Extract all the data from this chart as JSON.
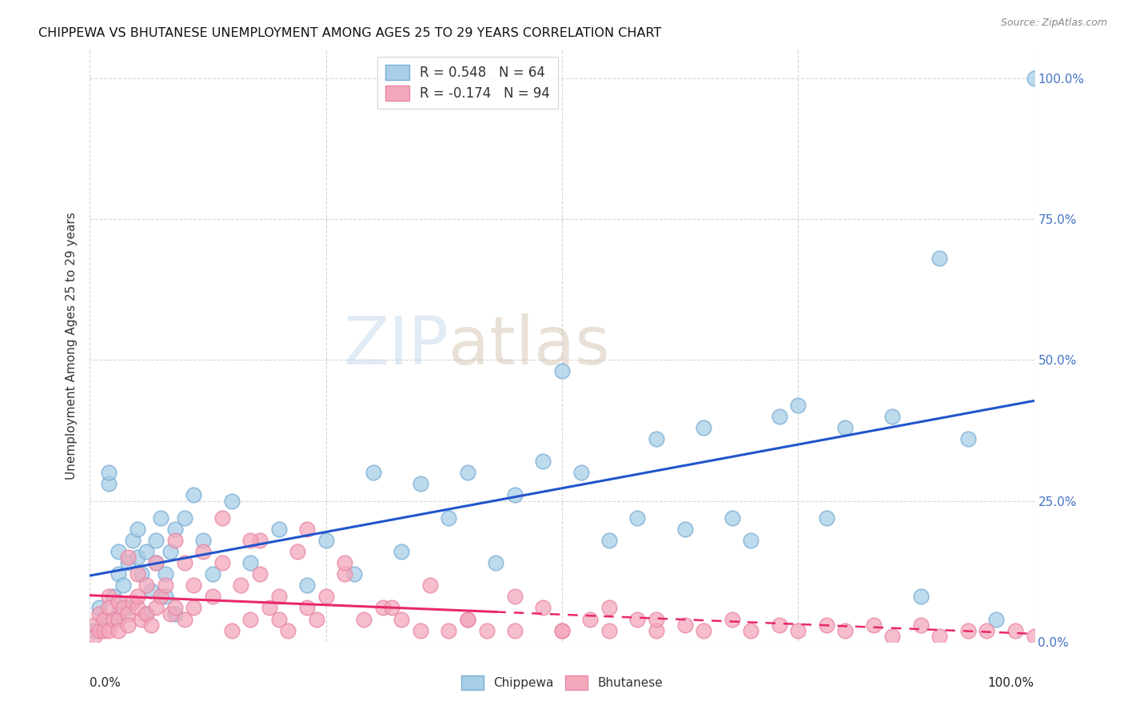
{
  "title": "CHIPPEWA VS BHUTANESE UNEMPLOYMENT AMONG AGES 25 TO 29 YEARS CORRELATION CHART",
  "source": "Source: ZipAtlas.com",
  "ylabel": "Unemployment Among Ages 25 to 29 years",
  "ytick_labels": [
    "0.0%",
    "25.0%",
    "50.0%",
    "75.0%",
    "100.0%"
  ],
  "ytick_values": [
    0.0,
    0.25,
    0.5,
    0.75,
    1.0
  ],
  "chippewa_color": "#A8CEE8",
  "bhutanese_color": "#F4A8BC",
  "chippewa_edge": "#7AAED4",
  "bhutanese_edge": "#E888A4",
  "chippewa_line_color": "#2255CC",
  "bhutanese_line_color": "#E8286C",
  "watermark_zip_color": "#C8D8E8",
  "watermark_atlas_color": "#D8C8B8",
  "chippewa_x": [
    0.005,
    0.01,
    0.015,
    0.02,
    0.02,
    0.025,
    0.03,
    0.03,
    0.03,
    0.035,
    0.04,
    0.04,
    0.045,
    0.05,
    0.05,
    0.055,
    0.06,
    0.06,
    0.065,
    0.07,
    0.07,
    0.075,
    0.08,
    0.08,
    0.085,
    0.09,
    0.09,
    0.1,
    0.11,
    0.12,
    0.13,
    0.15,
    0.17,
    0.2,
    0.23,
    0.25,
    0.28,
    0.3,
    0.33,
    0.35,
    0.38,
    0.4,
    0.43,
    0.45,
    0.48,
    0.5,
    0.52,
    0.55,
    0.58,
    0.6,
    0.63,
    0.65,
    0.68,
    0.7,
    0.73,
    0.75,
    0.78,
    0.8,
    0.85,
    0.88,
    0.9,
    0.93,
    0.96,
    1.0
  ],
  "chippewa_y": [
    0.02,
    0.06,
    0.04,
    0.28,
    0.3,
    0.08,
    0.05,
    0.12,
    0.16,
    0.1,
    0.06,
    0.14,
    0.18,
    0.15,
    0.2,
    0.12,
    0.05,
    0.16,
    0.09,
    0.14,
    0.18,
    0.22,
    0.08,
    0.12,
    0.16,
    0.2,
    0.05,
    0.22,
    0.26,
    0.18,
    0.12,
    0.25,
    0.14,
    0.2,
    0.1,
    0.18,
    0.12,
    0.3,
    0.16,
    0.28,
    0.22,
    0.3,
    0.14,
    0.26,
    0.32,
    0.48,
    0.3,
    0.18,
    0.22,
    0.36,
    0.2,
    0.38,
    0.22,
    0.18,
    0.4,
    0.42,
    0.22,
    0.38,
    0.4,
    0.08,
    0.68,
    0.36,
    0.04,
    1.0
  ],
  "bhutanese_x": [
    0.005,
    0.005,
    0.01,
    0.01,
    0.015,
    0.015,
    0.02,
    0.02,
    0.02,
    0.025,
    0.03,
    0.03,
    0.03,
    0.035,
    0.04,
    0.04,
    0.04,
    0.045,
    0.05,
    0.05,
    0.05,
    0.055,
    0.06,
    0.06,
    0.065,
    0.07,
    0.07,
    0.075,
    0.08,
    0.085,
    0.09,
    0.09,
    0.1,
    0.1,
    0.11,
    0.11,
    0.12,
    0.13,
    0.14,
    0.15,
    0.16,
    0.17,
    0.18,
    0.18,
    0.19,
    0.2,
    0.21,
    0.22,
    0.23,
    0.24,
    0.25,
    0.27,
    0.29,
    0.31,
    0.33,
    0.35,
    0.38,
    0.4,
    0.42,
    0.45,
    0.48,
    0.5,
    0.53,
    0.55,
    0.58,
    0.6,
    0.63,
    0.65,
    0.68,
    0.7,
    0.73,
    0.75,
    0.78,
    0.8,
    0.83,
    0.85,
    0.88,
    0.9,
    0.93,
    0.95,
    0.98,
    1.0,
    0.14,
    0.17,
    0.2,
    0.23,
    0.27,
    0.32,
    0.36,
    0.4,
    0.45,
    0.5,
    0.55,
    0.6
  ],
  "bhutanese_y": [
    0.03,
    0.01,
    0.05,
    0.02,
    0.04,
    0.02,
    0.08,
    0.06,
    0.02,
    0.04,
    0.07,
    0.04,
    0.02,
    0.06,
    0.15,
    0.05,
    0.03,
    0.07,
    0.12,
    0.06,
    0.08,
    0.04,
    0.1,
    0.05,
    0.03,
    0.14,
    0.06,
    0.08,
    0.1,
    0.05,
    0.18,
    0.06,
    0.14,
    0.04,
    0.1,
    0.06,
    0.16,
    0.08,
    0.14,
    0.02,
    0.1,
    0.04,
    0.12,
    0.18,
    0.06,
    0.04,
    0.02,
    0.16,
    0.06,
    0.04,
    0.08,
    0.12,
    0.04,
    0.06,
    0.04,
    0.02,
    0.02,
    0.04,
    0.02,
    0.02,
    0.06,
    0.02,
    0.04,
    0.02,
    0.04,
    0.02,
    0.03,
    0.02,
    0.04,
    0.02,
    0.03,
    0.02,
    0.03,
    0.02,
    0.03,
    0.01,
    0.03,
    0.01,
    0.02,
    0.02,
    0.02,
    0.01,
    0.22,
    0.18,
    0.08,
    0.2,
    0.14,
    0.06,
    0.1,
    0.04,
    0.08,
    0.02,
    0.06,
    0.04
  ]
}
